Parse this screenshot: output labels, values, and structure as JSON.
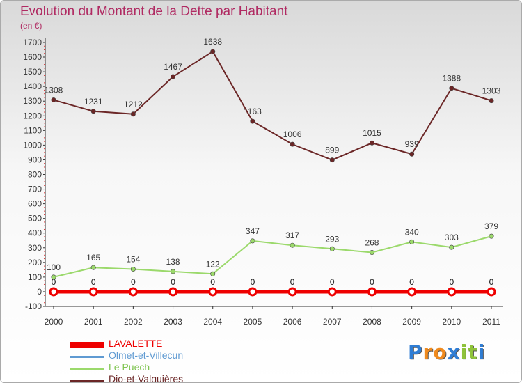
{
  "title": "Evolution du Montant de la Dette par Habitant",
  "unit_label": "(en €)",
  "logo": {
    "text": "Proxiti",
    "letters": [
      "P",
      "r",
      "o",
      "x",
      "i",
      "t",
      "i"
    ],
    "colors": [
      "#2f7dd4",
      "#f08a1d",
      "#f08a1d",
      "#2f7dd4",
      "#8fc33a",
      "#8fc33a",
      "#2f7dd4"
    ]
  },
  "chart_data": {
    "type": "line",
    "x": [
      "2000",
      "2001",
      "2002",
      "2003",
      "2004",
      "2005",
      "2006",
      "2007",
      "2008",
      "2009",
      "2010",
      "2011"
    ],
    "ylim": [
      -100,
      1700
    ],
    "yticks": [
      "-100",
      "0",
      "100",
      "200",
      "300",
      "400",
      "500",
      "600",
      "700",
      "800",
      "900",
      "1000",
      "1100",
      "1200",
      "1300",
      "1400",
      "1500",
      "1600",
      "1700"
    ],
    "grid": false,
    "legend_position": "bottom-left",
    "series": [
      {
        "name": "LAVALETTE",
        "color": "#ee0000",
        "values": [
          0,
          0,
          0,
          0,
          0,
          0,
          0,
          0,
          0,
          0,
          0,
          0
        ],
        "labels": [
          "0",
          "0",
          "0",
          "0",
          "0",
          "0",
          "0",
          "0",
          "0",
          "0",
          "0",
          "0"
        ]
      },
      {
        "name": "Olmet-et-Villecun",
        "color": "#5f9ad2",
        "values": [
          0,
          0,
          0,
          0,
          0,
          0,
          0,
          0,
          0,
          0,
          0,
          0
        ],
        "labels": [
          "0",
          "0",
          "0",
          "0",
          "0",
          "0",
          "0",
          "0",
          "0",
          "0",
          "0",
          "0"
        ]
      },
      {
        "name": "Le Puech",
        "color": "#9bd96b",
        "values": [
          100,
          165,
          154,
          138,
          122,
          347,
          317,
          293,
          268,
          340,
          303,
          379
        ],
        "labels": [
          "100",
          "165",
          "154",
          "138",
          "122",
          "347",
          "317",
          "293",
          "268",
          "340",
          "303",
          "379"
        ]
      },
      {
        "name": "Dio-et-Valquières",
        "color": "#6b2626",
        "values": [
          1308,
          1231,
          1212,
          1467,
          1638,
          1163,
          1006,
          899,
          1015,
          939,
          1388,
          1303
        ],
        "labels": [
          "1308",
          "1231",
          "1212",
          "1467",
          "1638",
          "1163",
          "1006",
          "899",
          "1015",
          "939",
          "1388",
          "1303"
        ]
      }
    ]
  }
}
